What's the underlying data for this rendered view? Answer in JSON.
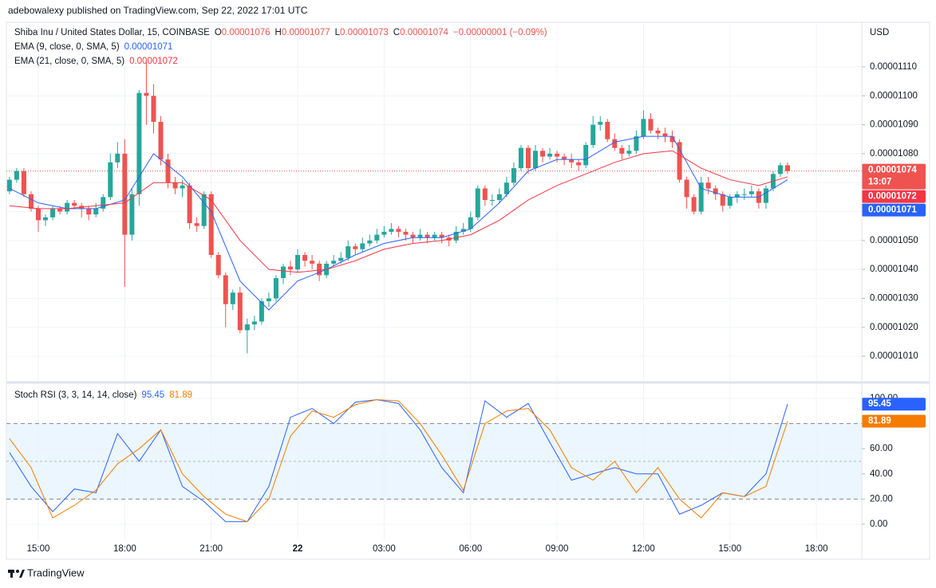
{
  "header": {
    "publisher": "adebowalexy published on TradingView.com, Sep 22, 2022 17:01 UTC",
    "brand": "TradingView"
  },
  "chart_data": [
    {
      "type": "candlestick",
      "title": "Shiba Inu / United States Dollar, 15, COINBASE",
      "axis_label": "USD",
      "ohlc_keys": [
        "O",
        "H",
        "L",
        "C"
      ],
      "change_label": "−0.00000001 (−0.09%)",
      "countdown": "13:07",
      "up_color": "#26a69a",
      "down_color": "#ef5350",
      "last_color": "#ef5350",
      "grid": true,
      "xlim": [
        -0.43,
        118.3
      ],
      "xticks": [
        {
          "value": 4,
          "label": "15:00"
        },
        {
          "value": 16,
          "label": "18:00"
        },
        {
          "value": 28,
          "label": "21:00"
        },
        {
          "value": 40,
          "label": "22"
        },
        {
          "value": 52,
          "label": "03:00"
        },
        {
          "value": 64,
          "label": "06:00"
        },
        {
          "value": 76,
          "label": "09:00"
        },
        {
          "value": 88,
          "label": "12:00"
        },
        {
          "value": 100,
          "label": "15:00"
        },
        {
          "value": 112,
          "label": "18:00"
        }
      ],
      "ylim": [
        1.0015e-05,
        1.1254e-05
      ],
      "yticks": [
        {
          "value": 1.01e-05,
          "label": "0.00001010"
        },
        {
          "value": 1.02e-05,
          "label": "0.00001020"
        },
        {
          "value": 1.03e-05,
          "label": "0.00001030"
        },
        {
          "value": 1.04e-05,
          "label": "0.00001040"
        },
        {
          "value": 1.05e-05,
          "label": "0.00001050"
        },
        {
          "value": 1.06e-05,
          "label": "0.00001060"
        },
        {
          "value": 1.07e-05,
          "label": "0.00001070"
        },
        {
          "value": 1.08e-05,
          "label": "0.00001080"
        },
        {
          "value": 1.09e-05,
          "label": "0.00001090"
        },
        {
          "value": 1.1e-05,
          "label": "0.00001100"
        },
        {
          "value": 1.11e-05,
          "label": "0.00001110"
        }
      ],
      "open": [
        1.067e-05,
        1.071e-05,
        1.074e-05,
        1.066e-05,
        1.061e-05,
        1.057e-05,
        1.058e-05,
        1.061e-05,
        1.06e-05,
        1.063e-05,
        1.062e-05,
        1.061e-05,
        1.059e-05,
        1.061e-05,
        1.065e-05,
        1.077e-05,
        1.08e-05,
        1.052e-05,
        1.066e-05,
        1.101e-05,
        1.1e-05,
        1.091e-05,
        1.078e-05,
        1.07e-05,
        1.068e-05,
        1.069e-05,
        1.056e-05,
        1.055e-05,
        1.066e-05,
        1.045e-05,
        1.038e-05,
        1.028e-05,
        1.032e-05,
        1.019e-05,
        1.021e-05,
        1.022e-05,
        1.029e-05,
        1.03e-05,
        1.037e-05,
        1.041e-05,
        1.04e-05,
        1.045e-05,
        1.043e-05,
        1.042e-05,
        1.038e-05,
        1.042e-05,
        1.043e-05,
        1.044e-05,
        1.048e-05,
        1.047e-05,
        1.049e-05,
        1.05e-05,
        1.052e-05,
        1.053e-05,
        1.054e-05,
        1.053e-05,
        1.052e-05,
        1.051e-05,
        1.052e-05,
        1.051e-05,
        1.052e-05,
        1.051e-05,
        1.05e-05,
        1.053e-05,
        1.054e-05,
        1.058e-05,
        1.068e-05,
        1.064e-05,
        1.064e-05,
        1.066e-05,
        1.07e-05,
        1.075e-05,
        1.082e-05,
        1.075e-05,
        1.081e-05,
        1.079e-05,
        1.08e-05,
        1.079e-05,
        1.078e-05,
        1.077e-05,
        1.076e-05,
        1.083e-05,
        1.09e-05,
        1.091e-05,
        1.085e-05,
        1.082e-05,
        1.08e-05,
        1.081e-05,
        1.086e-05,
        1.092e-05,
        1.088e-05,
        1.087e-05,
        1.086e-05,
        1.084e-05,
        1.071e-05,
        1.065e-05,
        1.06e-05,
        1.07e-05,
        1.068e-05,
        1.066e-05,
        1.062e-05,
        1.065e-05,
        1.066e-05,
        1.066e-05,
        1.067e-05,
        1.063e-05,
        1.068e-05,
        1.073e-05,
        1.076e-05
      ],
      "high": [
        1.072e-05,
        1.075e-05,
        1.075e-05,
        1.067e-05,
        1.062e-05,
        1.059e-05,
        1.062e-05,
        1.062e-05,
        1.064e-05,
        1.064e-05,
        1.063e-05,
        1.062e-05,
        1.063e-05,
        1.066e-05,
        1.08e-05,
        1.084e-05,
        1.085e-05,
        1.068e-05,
        1.102e-05,
        1.112e-05,
        1.104e-05,
        1.093e-05,
        1.08e-05,
        1.072e-05,
        1.071e-05,
        1.07e-05,
        1.058e-05,
        1.067e-05,
        1.067e-05,
        1.046e-05,
        1.039e-05,
        1.033e-05,
        1.034e-05,
        1.023e-05,
        1.024e-05,
        1.03e-05,
        1.032e-05,
        1.038e-05,
        1.042e-05,
        1.043e-05,
        1.047e-05,
        1.046e-05,
        1.045e-05,
        1.043e-05,
        1.043e-05,
        1.045e-05,
        1.046e-05,
        1.05e-05,
        1.049e-05,
        1.051e-05,
        1.052e-05,
        1.054e-05,
        1.055e-05,
        1.056e-05,
        1.055e-05,
        1.054e-05,
        1.053e-05,
        1.054e-05,
        1.053e-05,
        1.053e-05,
        1.053e-05,
        1.052e-05,
        1.055e-05,
        1.056e-05,
        1.06e-05,
        1.069e-05,
        1.069e-05,
        1.066e-05,
        1.068e-05,
        1.072e-05,
        1.077e-05,
        1.083e-05,
        1.083e-05,
        1.083e-05,
        1.082e-05,
        1.082e-05,
        1.081e-05,
        1.08e-05,
        1.08e-05,
        1.078e-05,
        1.084e-05,
        1.093e-05,
        1.093e-05,
        1.092e-05,
        1.087e-05,
        1.083e-05,
        1.083e-05,
        1.088e-05,
        1.095e-05,
        1.094e-05,
        1.089e-05,
        1.089e-05,
        1.088e-05,
        1.085e-05,
        1.072e-05,
        1.066e-05,
        1.072e-05,
        1.072e-05,
        1.069e-05,
        1.067e-05,
        1.066e-05,
        1.067e-05,
        1.068e-05,
        1.069e-05,
        1.068e-05,
        1.069e-05,
        1.074e-05,
        1.077e-05,
        1.077e-05
      ],
      "low": [
        1.066e-05,
        1.07e-05,
        1.065e-05,
        1.06e-05,
        1.053e-05,
        1.055e-05,
        1.057e-05,
        1.059e-05,
        1.059e-05,
        1.061e-05,
        1.058e-05,
        1.057e-05,
        1.058e-05,
        1.06e-05,
        1.064e-05,
        1.075e-05,
        1.034e-05,
        1.05e-05,
        1.062e-05,
        1.09e-05,
        1.087e-05,
        1.076e-05,
        1.068e-05,
        1.066e-05,
        1.065e-05,
        1.054e-05,
        1.053e-05,
        1.054e-05,
        1.044e-05,
        1.037e-05,
        1.02e-05,
        1.026e-05,
        1.018e-05,
        1.011e-05,
        1.019e-05,
        1.021e-05,
        1.027e-05,
        1.029e-05,
        1.035e-05,
        1.038e-05,
        1.039e-05,
        1.041e-05,
        1.04e-05,
        1.036e-05,
        1.037e-05,
        1.041e-05,
        1.042e-05,
        1.043e-05,
        1.045e-05,
        1.046e-05,
        1.048e-05,
        1.049e-05,
        1.051e-05,
        1.052e-05,
        1.051e-05,
        1.05e-05,
        1.049e-05,
        1.05e-05,
        1.049e-05,
        1.05e-05,
        1.049e-05,
        1.048e-05,
        1.049e-05,
        1.052e-05,
        1.053e-05,
        1.057e-05,
        1.062e-05,
        1.062e-05,
        1.063e-05,
        1.065e-05,
        1.069e-05,
        1.074e-05,
        1.073e-05,
        1.074e-05,
        1.077e-05,
        1.078e-05,
        1.077e-05,
        1.076e-05,
        1.075e-05,
        1.074e-05,
        1.075e-05,
        1.082e-05,
        1.088e-05,
        1.084e-05,
        1.081e-05,
        1.078e-05,
        1.079e-05,
        1.08e-05,
        1.085e-05,
        1.087e-05,
        1.085e-05,
        1.084e-05,
        1.082e-05,
        1.07e-05,
        1.061e-05,
        1.059e-05,
        1.059e-05,
        1.066e-05,
        1.064e-05,
        1.06e-05,
        1.061e-05,
        1.063e-05,
        1.064e-05,
        1.065e-05,
        1.061e-05,
        1.061e-05,
        1.067e-05,
        1.072e-05,
        1.073e-05
      ],
      "close": [
        1.071e-05,
        1.074e-05,
        1.066e-05,
        1.061e-05,
        1.057e-05,
        1.058e-05,
        1.061e-05,
        1.06e-05,
        1.063e-05,
        1.062e-05,
        1.061e-05,
        1.059e-05,
        1.061e-05,
        1.065e-05,
        1.077e-05,
        1.08e-05,
        1.052e-05,
        1.066e-05,
        1.101e-05,
        1.1e-05,
        1.091e-05,
        1.078e-05,
        1.07e-05,
        1.068e-05,
        1.069e-05,
        1.056e-05,
        1.055e-05,
        1.066e-05,
        1.045e-05,
        1.038e-05,
        1.028e-05,
        1.032e-05,
        1.019e-05,
        1.021e-05,
        1.022e-05,
        1.029e-05,
        1.03e-05,
        1.037e-05,
        1.041e-05,
        1.04e-05,
        1.045e-05,
        1.043e-05,
        1.042e-05,
        1.038e-05,
        1.042e-05,
        1.043e-05,
        1.044e-05,
        1.048e-05,
        1.047e-05,
        1.049e-05,
        1.05e-05,
        1.052e-05,
        1.053e-05,
        1.054e-05,
        1.053e-05,
        1.052e-05,
        1.051e-05,
        1.052e-05,
        1.051e-05,
        1.052e-05,
        1.051e-05,
        1.05e-05,
        1.053e-05,
        1.054e-05,
        1.058e-05,
        1.068e-05,
        1.064e-05,
        1.064e-05,
        1.066e-05,
        1.07e-05,
        1.075e-05,
        1.082e-05,
        1.075e-05,
        1.081e-05,
        1.079e-05,
        1.08e-05,
        1.079e-05,
        1.078e-05,
        1.077e-05,
        1.076e-05,
        1.083e-05,
        1.09e-05,
        1.091e-05,
        1.085e-05,
        1.082e-05,
        1.08e-05,
        1.081e-05,
        1.086e-05,
        1.092e-05,
        1.088e-05,
        1.087e-05,
        1.086e-05,
        1.084e-05,
        1.071e-05,
        1.065e-05,
        1.06e-05,
        1.07e-05,
        1.068e-05,
        1.066e-05,
        1.062e-05,
        1.065e-05,
        1.066e-05,
        1.066e-05,
        1.067e-05,
        1.063e-05,
        1.068e-05,
        1.073e-05,
        1.076e-05,
        1.074e-05
      ],
      "series": [
        {
          "name": "EMA (9, close, 0, SMA, 5)",
          "color": "#2962ff",
          "x": [
            0,
            4,
            8,
            12,
            16,
            20,
            24,
            28,
            32,
            36,
            40,
            44,
            48,
            52,
            56,
            60,
            64,
            68,
            72,
            76,
            80,
            84,
            88,
            92,
            96,
            100,
            104,
            108
          ],
          "values": [
            1.068e-05,
            1.063e-05,
            1.061e-05,
            1.061e-05,
            1.064e-05,
            1.08e-05,
            1.072e-05,
            1.06e-05,
            1.036e-05,
            1.026e-05,
            1.036e-05,
            1.04e-05,
            1.045e-05,
            1.049e-05,
            1.051e-05,
            1.051e-05,
            1.054e-05,
            1.063e-05,
            1.074e-05,
            1.078e-05,
            1.078e-05,
            1.084e-05,
            1.086e-05,
            1.086e-05,
            1.068e-05,
            1.065e-05,
            1.065e-05,
            1.071e-05
          ]
        },
        {
          "name": "EMA (21, close, 0, SMA, 5)",
          "color": "#f23645",
          "x": [
            0,
            4,
            8,
            12,
            16,
            20,
            24,
            28,
            32,
            36,
            40,
            44,
            48,
            52,
            56,
            60,
            64,
            68,
            72,
            76,
            80,
            84,
            88,
            92,
            96,
            100,
            104,
            108
          ],
          "values": [
            1.062e-05,
            1.061e-05,
            1.061e-05,
            1.062e-05,
            1.063e-05,
            1.07e-05,
            1.07e-05,
            1.064e-05,
            1.05e-05,
            1.04e-05,
            1.039e-05,
            1.04e-05,
            1.043e-05,
            1.047e-05,
            1.049e-05,
            1.05e-05,
            1.052e-05,
            1.057e-05,
            1.064e-05,
            1.069e-05,
            1.073e-05,
            1.077e-05,
            1.08e-05,
            1.081e-05,
            1.075e-05,
            1.071e-05,
            1.069e-05,
            1.072e-05
          ]
        }
      ]
    },
    {
      "type": "line",
      "title": "Stoch RSI (3, 3, 14, 14, close)",
      "grid": true,
      "band_color": "#e3f2fd",
      "xlim": [
        -0.43,
        118.3
      ],
      "ylim": [
        -12.7,
        111.4
      ],
      "yticks": [
        {
          "value": 0,
          "label": "0.00"
        },
        {
          "value": 20,
          "label": "20.00"
        },
        {
          "value": 40,
          "label": "40.00"
        },
        {
          "value": 60,
          "label": "60.00"
        },
        {
          "value": 80,
          "label": "80.00"
        },
        {
          "value": 100,
          "label": "100.00"
        }
      ],
      "bands": [
        20,
        50,
        80
      ],
      "series": [
        {
          "color": "#2962ff",
          "x": [
            0,
            3,
            6,
            9,
            12,
            15,
            18,
            21,
            24,
            27,
            30,
            33,
            36,
            39,
            42,
            45,
            48,
            51,
            54,
            57,
            60,
            63,
            66,
            69,
            72,
            75,
            78,
            81,
            84,
            87,
            90,
            93,
            96,
            99,
            102,
            105,
            108
          ],
          "values": [
            57,
            30,
            10,
            28,
            25,
            72,
            50,
            75,
            30,
            18,
            2,
            2,
            30,
            85,
            92,
            80,
            97,
            99,
            96,
            75,
            45,
            25,
            98,
            85,
            96,
            65,
            35,
            40,
            45,
            40,
            40,
            8,
            15,
            25,
            22,
            40,
            95.45
          ]
        },
        {
          "color": "#f57c00",
          "x": [
            0,
            3,
            6,
            9,
            12,
            15,
            18,
            21,
            24,
            27,
            30,
            33,
            36,
            39,
            42,
            45,
            48,
            51,
            54,
            57,
            60,
            63,
            66,
            69,
            72,
            75,
            78,
            81,
            84,
            87,
            90,
            93,
            96,
            99,
            102,
            105,
            108
          ],
          "values": [
            68,
            45,
            5,
            15,
            27,
            48,
            60,
            75,
            40,
            22,
            8,
            2,
            20,
            70,
            90,
            85,
            95,
            99,
            98,
            80,
            55,
            27,
            80,
            90,
            92,
            75,
            45,
            35,
            50,
            25,
            45,
            20,
            5,
            25,
            22,
            30,
            81.89
          ]
        }
      ]
    }
  ]
}
